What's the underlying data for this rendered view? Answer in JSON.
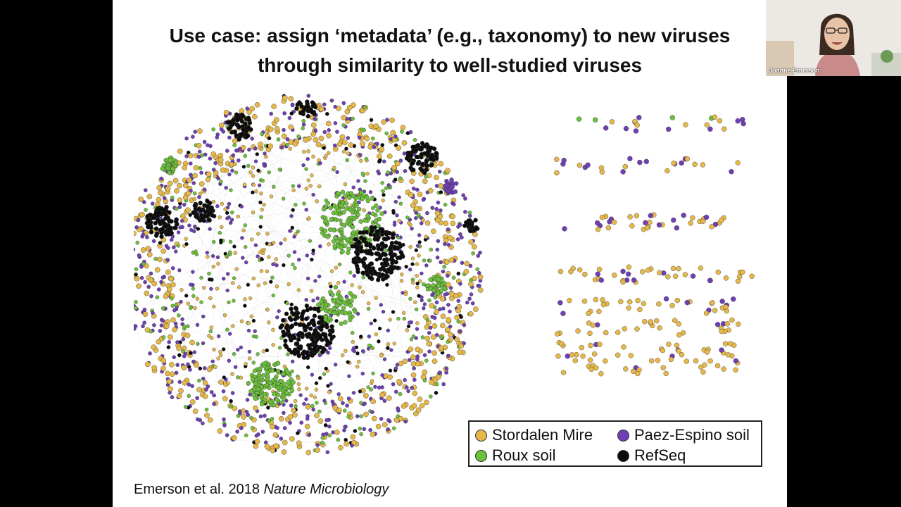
{
  "slide": {
    "title_line1": "Use case: assign ‘metadata’ (e.g., taxonomy) to new viruses",
    "title_line2": "through similarity to well-studied viruses",
    "citation_authors": "Emerson et al. 2018 ",
    "citation_journal": "Nature Microbiology"
  },
  "legend": {
    "items": [
      {
        "label": "Stordalen Mire",
        "color": "#e6b84a"
      },
      {
        "label": "Paez-Espino soil",
        "color": "#6f3fb5"
      },
      {
        "label": "Roux soil",
        "color": "#6cc13a"
      },
      {
        "label": "RefSeq",
        "color": "#0a0a0a"
      }
    ]
  },
  "webcam": {
    "participant_name": "Joanne Emerson"
  }
}
